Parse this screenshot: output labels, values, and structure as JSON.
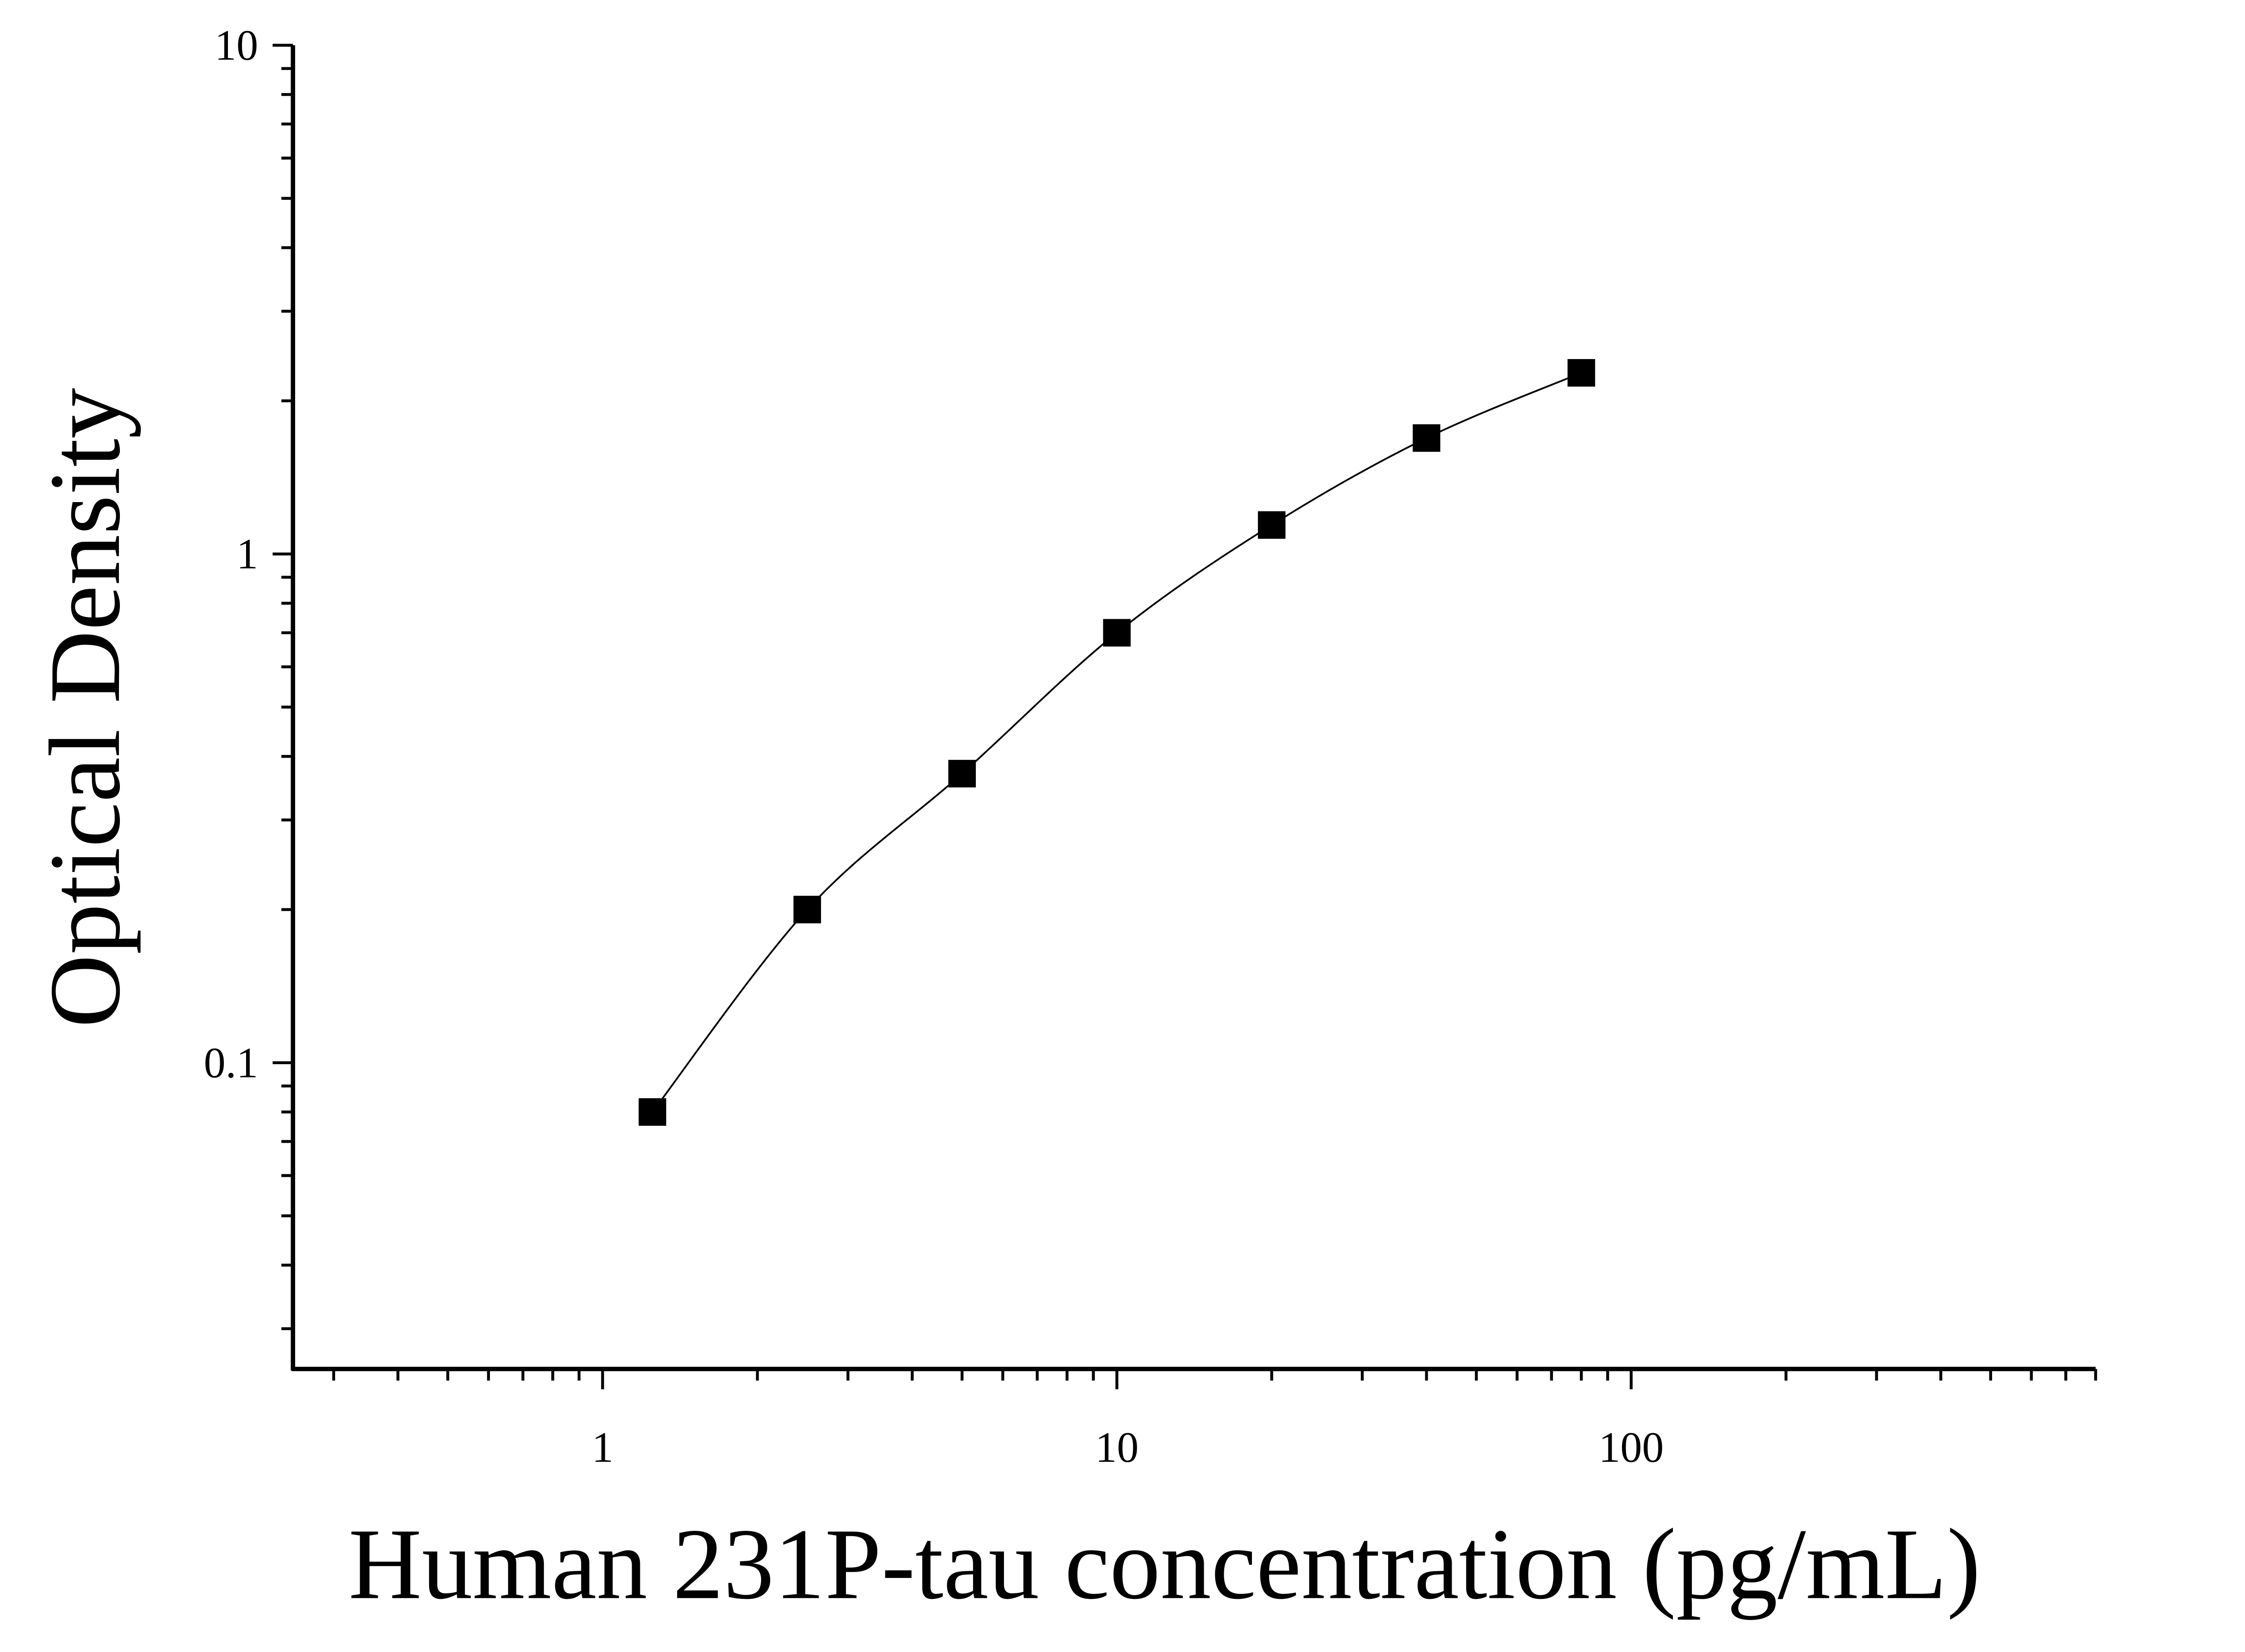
{
  "chart_data": {
    "type": "scatter",
    "x_label": "Human 231P-tau concentration (pg/mL)",
    "y_label": "Optical Density",
    "xscale": "log",
    "yscale": "log",
    "xlim": [
      0.25,
      800
    ],
    "ylim": [
      0.025,
      10
    ],
    "xticks": [
      1,
      10,
      100
    ],
    "yticks": [
      0.1,
      1,
      10
    ],
    "xminorticks": [
      0.3,
      0.4,
      0.5,
      0.6,
      0.7,
      0.8,
      0.9,
      2,
      3,
      4,
      5,
      6,
      7,
      8,
      9,
      20,
      30,
      40,
      50,
      60,
      70,
      80,
      90,
      200,
      300,
      400,
      500,
      600,
      700,
      800
    ],
    "yminorticks": [
      0.03,
      0.04,
      0.05,
      0.06,
      0.07,
      0.08,
      0.09,
      0.2,
      0.3,
      0.4,
      0.5,
      0.6,
      0.7,
      0.8,
      0.9,
      2,
      3,
      4,
      5,
      6,
      7,
      8,
      9
    ],
    "color": "#000000",
    "fit_line": true,
    "x": [
      1.25,
      2.5,
      5,
      10,
      20,
      40,
      80
    ],
    "values": [
      0.08,
      0.2,
      0.37,
      0.7,
      1.14,
      1.69,
      2.27
    ]
  }
}
